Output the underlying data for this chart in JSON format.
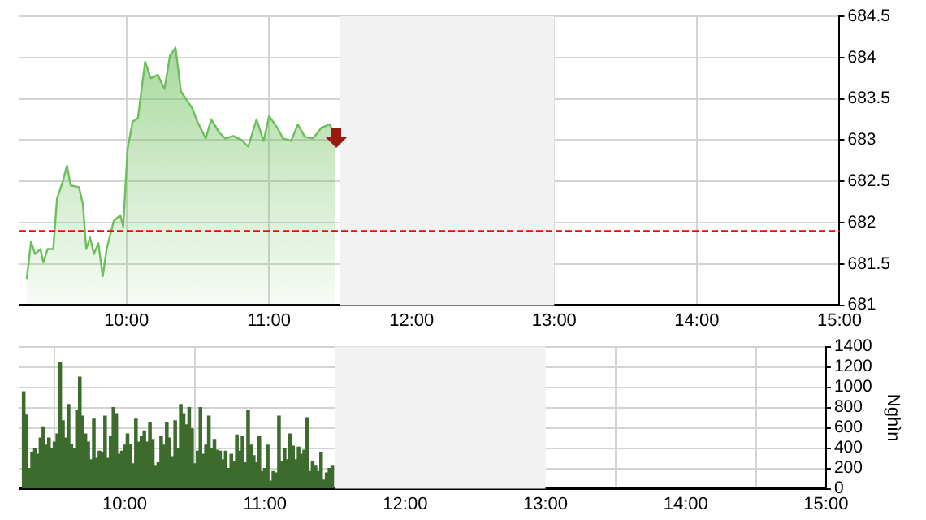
{
  "chart_data": [
    {
      "type": "area",
      "xlim": [
        9.25,
        15
      ],
      "xticks": [
        {
          "value": 10,
          "label": "10:00"
        },
        {
          "value": 11,
          "label": "11:00"
        },
        {
          "value": 12,
          "label": "12:00"
        },
        {
          "value": 13,
          "label": "13:00"
        },
        {
          "value": 14,
          "label": "14:00"
        },
        {
          "value": 15,
          "label": "15:00"
        }
      ],
      "ylim": [
        681,
        684.5
      ],
      "yticks": [
        681,
        681.5,
        682,
        682.5,
        683,
        683.5,
        684,
        684.5
      ],
      "grid": true,
      "legend": false,
      "series": [
        {
          "color": "#6cbf5a",
          "x": [
            9.301,
            9.331,
            9.359,
            9.397,
            9.417,
            9.447,
            9.487,
            9.513,
            9.552,
            9.583,
            9.609,
            9.667,
            9.695,
            9.718,
            9.745,
            9.772,
            9.803,
            9.834,
            9.861,
            9.911,
            9.957,
            9.977,
            10.008,
            10.043,
            10.081,
            10.131,
            10.17,
            10.22,
            10.267,
            10.305,
            10.344,
            10.382,
            10.421,
            10.46,
            10.498,
            10.556,
            10.594,
            10.652,
            10.692,
            10.75,
            10.808,
            10.854,
            10.912,
            10.962,
            11.0,
            11.058,
            11.098,
            11.155,
            11.202,
            11.251,
            11.309,
            11.367,
            11.425,
            11.464
          ],
          "values": [
            681.32,
            681.77,
            681.62,
            681.68,
            681.52,
            681.68,
            681.68,
            682.29,
            682.49,
            682.69,
            682.45,
            682.43,
            682.22,
            681.68,
            681.82,
            681.62,
            681.75,
            681.35,
            681.68,
            682.02,
            682.09,
            681.95,
            682.89,
            683.22,
            683.27,
            683.95,
            683.75,
            683.79,
            683.62,
            684.02,
            684.12,
            683.59,
            683.49,
            683.39,
            683.22,
            683.02,
            683.25,
            683.09,
            683.02,
            683.05,
            683.0,
            682.92,
            683.25,
            682.99,
            683.29,
            683.15,
            683.02,
            682.99,
            683.19,
            683.04,
            683.02,
            683.15,
            683.19,
            683.05
          ]
        }
      ],
      "ref_lines": [
        {
          "axis": "y",
          "value": 681.9,
          "color": "#ff0000",
          "line_style": "dashed"
        }
      ],
      "bands": [
        {
          "axis": "x",
          "from": 11.5,
          "to": 13,
          "color": "#f2f2f2"
        }
      ]
    },
    {
      "type": "bar",
      "ylabel": "Nghìn",
      "xlim": [
        9.25,
        15
      ],
      "xticks": [
        {
          "value": 10,
          "label": "10:00"
        },
        {
          "value": 11,
          "label": "11:00"
        },
        {
          "value": 12,
          "label": "12:00"
        },
        {
          "value": 13,
          "label": "13:00"
        },
        {
          "value": 14,
          "label": "14:00"
        },
        {
          "value": 15,
          "label": "15:00"
        }
      ],
      "ylim": [
        0,
        1400
      ],
      "yticks": [
        0,
        200,
        400,
        600,
        800,
        1000,
        1200,
        1400
      ],
      "grid": true,
      "legend": false,
      "series": [
        {
          "color": "#3d6b2e",
          "x": [
            9.28,
            9.3,
            9.32,
            9.34,
            9.36,
            9.38,
            9.4,
            9.42,
            9.44,
            9.46,
            9.48,
            9.5,
            9.52,
            9.54,
            9.56,
            9.58,
            9.6,
            9.62,
            9.64,
            9.66,
            9.68,
            9.7,
            9.72,
            9.74,
            9.76,
            9.78,
            9.8,
            9.82,
            9.84,
            9.86,
            9.88,
            9.9,
            9.92,
            9.94,
            9.96,
            9.98,
            10.0,
            10.02,
            10.04,
            10.06,
            10.08,
            10.1,
            10.12,
            10.14,
            10.16,
            10.18,
            10.2,
            10.22,
            10.24,
            10.26,
            10.28,
            10.3,
            10.32,
            10.34,
            10.36,
            10.38,
            10.4,
            10.42,
            10.44,
            10.46,
            10.48,
            10.5,
            10.52,
            10.54,
            10.56,
            10.58,
            10.6,
            10.62,
            10.64,
            10.66,
            10.68,
            10.7,
            10.72,
            10.74,
            10.76,
            10.78,
            10.8,
            10.82,
            10.84,
            10.86,
            10.88,
            10.9,
            10.92,
            10.94,
            10.96,
            10.98,
            11.0,
            11.02,
            11.04,
            11.06,
            11.08,
            11.1,
            11.12,
            11.14,
            11.16,
            11.18,
            11.2,
            11.22,
            11.24,
            11.26,
            11.28,
            11.3,
            11.32,
            11.34,
            11.36,
            11.38,
            11.4,
            11.42,
            11.44,
            11.46,
            11.48
          ],
          "values": [
            955,
            725,
            200,
            360,
            400,
            340,
            500,
            610,
            430,
            500,
            400,
            460,
            540,
            1240,
            670,
            500,
            830,
            440,
            400,
            770,
            1100,
            715,
            540,
            460,
            285,
            685,
            300,
            370,
            360,
            715,
            300,
            515,
            800,
            740,
            340,
            370,
            430,
            540,
            440,
            245,
            685,
            460,
            515,
            570,
            460,
            655,
            485,
            230,
            255,
            515,
            430,
            655,
            500,
            315,
            670,
            400,
            830,
            740,
            630,
            800,
            590,
            245,
            370,
            800,
            340,
            430,
            715,
            400,
            485,
            380,
            370,
            285,
            370,
            200,
            340,
            270,
            530,
            370,
            515,
            255,
            770,
            430,
            325,
            255,
            515,
            170,
            200,
            430,
            75,
            170,
            155,
            715,
            270,
            400,
            285,
            540,
            420,
            285,
            410,
            340,
            380,
            700,
            170,
            270,
            230,
            170,
            360,
            85,
            155,
            200,
            230
          ]
        }
      ],
      "bands": [
        {
          "axis": "x",
          "from": 11.5,
          "to": 13,
          "color": "#f2f2f2"
        }
      ]
    }
  ]
}
